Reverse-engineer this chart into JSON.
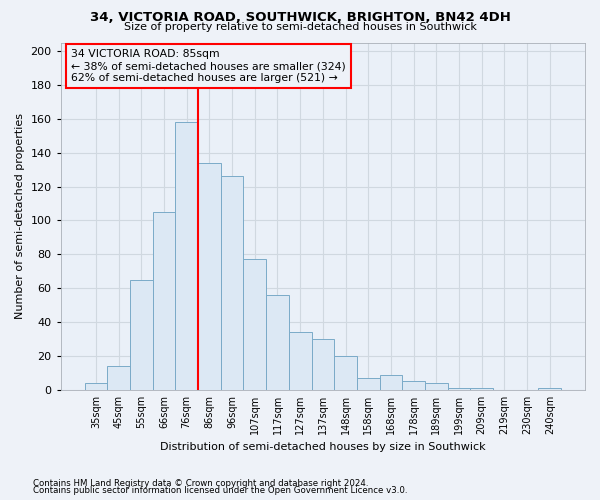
{
  "title1": "34, VICTORIA ROAD, SOUTHWICK, BRIGHTON, BN42 4DH",
  "title2": "Size of property relative to semi-detached houses in Southwick",
  "xlabel": "Distribution of semi-detached houses by size in Southwick",
  "ylabel": "Number of semi-detached properties",
  "footnote1": "Contains HM Land Registry data © Crown copyright and database right 2024.",
  "footnote2": "Contains public sector information licensed under the Open Government Licence v3.0.",
  "bar_color": "#dce8f4",
  "bar_edge_color": "#7aaac8",
  "marker_line_color": "red",
  "annotation_text1": "34 VICTORIA ROAD: 85sqm",
  "annotation_text2": "← 38% of semi-detached houses are smaller (324)",
  "annotation_text3": "62% of semi-detached houses are larger (521) →",
  "categories": [
    "35sqm",
    "45sqm",
    "55sqm",
    "66sqm",
    "76sqm",
    "86sqm",
    "96sqm",
    "107sqm",
    "117sqm",
    "127sqm",
    "137sqm",
    "148sqm",
    "158sqm",
    "168sqm",
    "178sqm",
    "189sqm",
    "199sqm",
    "209sqm",
    "219sqm",
    "230sqm",
    "240sqm"
  ],
  "values": [
    4,
    14,
    65,
    105,
    158,
    134,
    126,
    77,
    56,
    34,
    30,
    20,
    7,
    9,
    5,
    4,
    1,
    1,
    0,
    0,
    1
  ],
  "ylim": [
    0,
    205
  ],
  "yticks": [
    0,
    20,
    40,
    60,
    80,
    100,
    120,
    140,
    160,
    180,
    200
  ],
  "background_color": "#eef2f8",
  "plot_bg_color": "#eaf0f8",
  "grid_color": "#d0d8e0",
  "bar_width": 1.0,
  "marker_bin_index": 5
}
